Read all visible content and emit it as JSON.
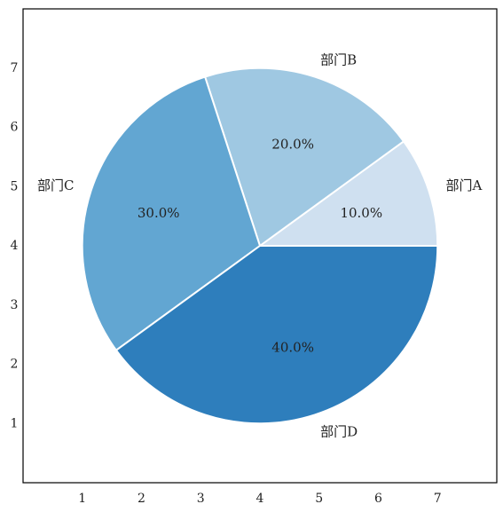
{
  "chart_data": {
    "type": "pie",
    "title": "",
    "xlabel": "",
    "ylabel": "",
    "categories": [
      "部门A",
      "部门B",
      "部门C",
      "部门D"
    ],
    "values": [
      10,
      20,
      30,
      40
    ],
    "percent_labels": [
      "10.0%",
      "20.0%",
      "30.0%",
      "40.0%"
    ],
    "colors": [
      "#cfe0f0",
      "#9fc8e2",
      "#62a6d2",
      "#2e7ebc"
    ],
    "start_angle_deg": 0,
    "direction": "counterclockwise",
    "wedge_edge_color": "#ffffff",
    "xlim": [
      0,
      8
    ],
    "ylim": [
      0,
      8
    ],
    "center": [
      4,
      4
    ],
    "radius": 3,
    "x_ticks": [
      "1",
      "2",
      "3",
      "4",
      "5",
      "6",
      "7"
    ],
    "y_ticks": [
      "1",
      "2",
      "3",
      "4",
      "5",
      "6",
      "7"
    ],
    "grid": false,
    "legend": "none"
  }
}
